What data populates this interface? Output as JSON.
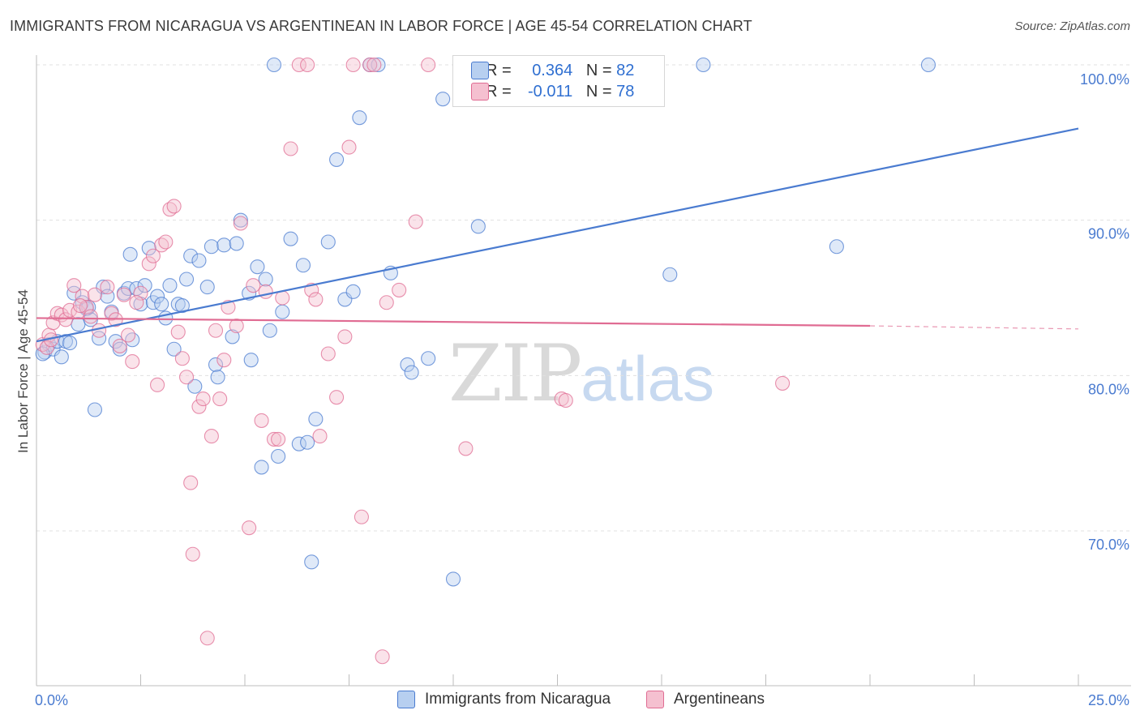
{
  "header": {
    "title": "IMMIGRANTS FROM NICARAGUA VS ARGENTINEAN IN LABOR FORCE | AGE 45-54 CORRELATION CHART",
    "source": "Source: ZipAtlas.com"
  },
  "watermark": {
    "zip": "ZIP",
    "atlas": "atlas"
  },
  "legend": {
    "r_label": "R =",
    "n_label": "N =",
    "entries": [
      {
        "name": "Immigrants from Nicaragua",
        "r": "0.364",
        "n": "82",
        "color": "#4a7bd0",
        "fill": "#b7cff0"
      },
      {
        "name": "Argentineans",
        "r": "-0.011",
        "n": "78",
        "color": "#e06c93",
        "fill": "#f5c0d0"
      }
    ]
  },
  "chart_data": {
    "type": "scatter",
    "title": "IMMIGRANTS FROM NICARAGUA VS ARGENTINEAN IN LABOR FORCE | AGE 45-54 CORRELATION CHART",
    "xlabel": "",
    "ylabel": "In Labor Force | Age 45-54",
    "xlim": [
      0,
      25
    ],
    "ylim": [
      61,
      101
    ],
    "x_tick_labels": [
      "0.0%",
      "25.0%"
    ],
    "y_ticks": [
      70,
      80,
      90,
      100
    ],
    "y_tick_labels": [
      "70.0%",
      "80.0%",
      "90.0%",
      "100.0%"
    ],
    "series": [
      {
        "name": "Immigrants from Nicaragua",
        "color": "#4a7bd0",
        "fill": "#b7cff0",
        "trend": {
          "x": [
            0,
            25
          ],
          "y": [
            82.2,
            95.9
          ],
          "extrapolated": false
        },
        "points": [
          [
            0.2,
            81.5
          ],
          [
            0.3,
            82
          ],
          [
            0.4,
            81.7
          ],
          [
            0.5,
            82.2
          ],
          [
            0.6,
            81.2
          ],
          [
            0.7,
            82.2
          ],
          [
            0.8,
            82.1
          ],
          [
            0.9,
            85.3
          ],
          [
            1.0,
            83.3
          ],
          [
            1.1,
            84.7
          ],
          [
            1.2,
            84.3
          ],
          [
            1.3,
            83.6
          ],
          [
            1.4,
            77.8
          ],
          [
            1.5,
            82.4
          ],
          [
            1.6,
            85.7
          ],
          [
            1.7,
            85.1
          ],
          [
            1.8,
            84.1
          ],
          [
            1.9,
            82.2
          ],
          [
            2.0,
            81.7
          ],
          [
            2.1,
            85.3
          ],
          [
            2.2,
            85.6
          ],
          [
            2.25,
            87.8
          ],
          [
            2.3,
            82.3
          ],
          [
            2.4,
            85.6
          ],
          [
            2.5,
            84.6
          ],
          [
            2.6,
            85.8
          ],
          [
            2.7,
            88.2
          ],
          [
            2.8,
            84.7
          ],
          [
            2.9,
            85.1
          ],
          [
            3.0,
            84.6
          ],
          [
            3.1,
            83.7
          ],
          [
            3.2,
            85.8
          ],
          [
            3.3,
            81.7
          ],
          [
            3.4,
            84.6
          ],
          [
            3.5,
            84.5
          ],
          [
            3.6,
            86.2
          ],
          [
            3.7,
            87.7
          ],
          [
            3.8,
            79.3
          ],
          [
            3.9,
            87.4
          ],
          [
            4.1,
            85.7
          ],
          [
            4.2,
            88.3
          ],
          [
            4.3,
            80.7
          ],
          [
            4.35,
            79.9
          ],
          [
            4.5,
            88.4
          ],
          [
            4.7,
            82.5
          ],
          [
            4.8,
            88.5
          ],
          [
            4.9,
            90
          ],
          [
            5.1,
            85.3
          ],
          [
            5.15,
            81
          ],
          [
            5.3,
            87
          ],
          [
            5.4,
            74.1
          ],
          [
            5.5,
            86.2
          ],
          [
            5.6,
            82.9
          ],
          [
            5.7,
            100
          ],
          [
            5.8,
            74.8
          ],
          [
            5.9,
            84.1
          ],
          [
            6.1,
            88.8
          ],
          [
            6.3,
            75.6
          ],
          [
            6.4,
            87.1
          ],
          [
            6.5,
            75.7
          ],
          [
            6.6,
            68
          ],
          [
            6.7,
            77.2
          ],
          [
            7.0,
            88.6
          ],
          [
            7.2,
            93.9
          ],
          [
            7.4,
            84.9
          ],
          [
            7.6,
            85.4
          ],
          [
            7.75,
            96.6
          ],
          [
            8.0,
            100
          ],
          [
            8.2,
            100
          ],
          [
            8.5,
            86.6
          ],
          [
            8.9,
            80.7
          ],
          [
            9.0,
            80.2
          ],
          [
            9.4,
            81.1
          ],
          [
            9.75,
            97.8
          ],
          [
            10.0,
            66.9
          ],
          [
            10.6,
            89.6
          ],
          [
            15.2,
            86.5
          ],
          [
            16.0,
            100
          ],
          [
            19.2,
            88.3
          ],
          [
            21.4,
            100
          ],
          [
            0.15,
            81.4
          ],
          [
            1.25,
            84.4
          ]
        ]
      },
      {
        "name": "Argentineans",
        "color": "#e06c93",
        "fill": "#f5c0d0",
        "trend": {
          "x": [
            0,
            20
          ],
          "y": [
            83.7,
            83.2
          ],
          "extrapolated_to": [
            25,
            83.0
          ]
        },
        "points": [
          [
            0.15,
            82
          ],
          [
            0.3,
            82.6
          ],
          [
            0.4,
            83.4
          ],
          [
            0.5,
            84
          ],
          [
            0.6,
            83.9
          ],
          [
            0.7,
            83.6
          ],
          [
            0.8,
            84.2
          ],
          [
            0.9,
            85.8
          ],
          [
            1.0,
            84.1
          ],
          [
            1.1,
            85.1
          ],
          [
            1.2,
            84.4
          ],
          [
            1.3,
            83.8
          ],
          [
            1.4,
            85.2
          ],
          [
            1.5,
            82.9
          ],
          [
            1.7,
            85.7
          ],
          [
            1.8,
            84
          ],
          [
            1.9,
            83.6
          ],
          [
            2.0,
            81.9
          ],
          [
            2.1,
            85.2
          ],
          [
            2.2,
            82.6
          ],
          [
            2.3,
            80.9
          ],
          [
            2.5,
            85.3
          ],
          [
            2.7,
            87.2
          ],
          [
            2.8,
            87.7
          ],
          [
            2.9,
            79.4
          ],
          [
            3.0,
            88.4
          ],
          [
            3.1,
            88.6
          ],
          [
            3.2,
            90.7
          ],
          [
            3.3,
            90.9
          ],
          [
            3.4,
            82.8
          ],
          [
            3.5,
            81.1
          ],
          [
            3.6,
            79.9
          ],
          [
            3.7,
            73.1
          ],
          [
            3.75,
            68.5
          ],
          [
            3.9,
            78
          ],
          [
            4.0,
            78.5
          ],
          [
            4.1,
            63.1
          ],
          [
            4.2,
            76.1
          ],
          [
            4.3,
            82.9
          ],
          [
            4.4,
            78.5
          ],
          [
            4.5,
            81
          ],
          [
            4.6,
            84.4
          ],
          [
            4.8,
            83.2
          ],
          [
            4.9,
            89.8
          ],
          [
            5.1,
            70.2
          ],
          [
            5.2,
            85.8
          ],
          [
            5.4,
            77.1
          ],
          [
            5.5,
            85.4
          ],
          [
            5.7,
            75.9
          ],
          [
            5.8,
            75.9
          ],
          [
            5.9,
            85
          ],
          [
            6.1,
            94.6
          ],
          [
            6.3,
            100
          ],
          [
            6.5,
            100
          ],
          [
            6.6,
            85.5
          ],
          [
            6.7,
            84.9
          ],
          [
            6.8,
            76.1
          ],
          [
            7.0,
            81.4
          ],
          [
            7.2,
            78.6
          ],
          [
            7.4,
            82.5
          ],
          [
            7.5,
            94.7
          ],
          [
            7.6,
            100
          ],
          [
            7.8,
            70.9
          ],
          [
            8.0,
            100
          ],
          [
            8.1,
            100
          ],
          [
            8.3,
            61.9
          ],
          [
            8.4,
            84.7
          ],
          [
            8.7,
            85.5
          ],
          [
            9.1,
            89.9
          ],
          [
            9.4,
            100
          ],
          [
            10.3,
            75.3
          ],
          [
            12.6,
            78.5
          ],
          [
            12.7,
            78.4
          ],
          [
            17.9,
            79.5
          ],
          [
            0.25,
            81.8
          ],
          [
            1.05,
            84.5
          ],
          [
            2.4,
            84.7
          ],
          [
            0.35,
            82.3
          ]
        ]
      }
    ]
  }
}
